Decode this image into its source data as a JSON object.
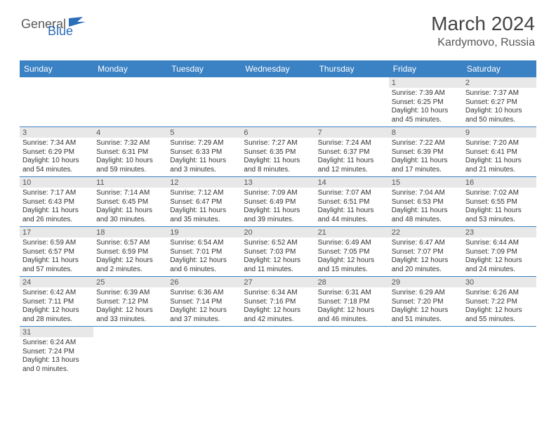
{
  "logo": {
    "part1": "General",
    "part2": "Blue"
  },
  "title": "March 2024",
  "location": "Kardymovo, Russia",
  "colors": {
    "header_bg": "#3b82c4",
    "header_text": "#ffffff",
    "daynum_bg": "#e8e8e8",
    "cell_border": "#3b82c4",
    "logo_gray": "#5a5a5a",
    "logo_blue": "#2a6db8"
  },
  "day_headers": [
    "Sunday",
    "Monday",
    "Tuesday",
    "Wednesday",
    "Thursday",
    "Friday",
    "Saturday"
  ],
  "weeks": [
    [
      null,
      null,
      null,
      null,
      null,
      {
        "n": "1",
        "sr": "Sunrise: 7:39 AM",
        "ss": "Sunset: 6:25 PM",
        "d1": "Daylight: 10 hours",
        "d2": "and 45 minutes."
      },
      {
        "n": "2",
        "sr": "Sunrise: 7:37 AM",
        "ss": "Sunset: 6:27 PM",
        "d1": "Daylight: 10 hours",
        "d2": "and 50 minutes."
      }
    ],
    [
      {
        "n": "3",
        "sr": "Sunrise: 7:34 AM",
        "ss": "Sunset: 6:29 PM",
        "d1": "Daylight: 10 hours",
        "d2": "and 54 minutes."
      },
      {
        "n": "4",
        "sr": "Sunrise: 7:32 AM",
        "ss": "Sunset: 6:31 PM",
        "d1": "Daylight: 10 hours",
        "d2": "and 59 minutes."
      },
      {
        "n": "5",
        "sr": "Sunrise: 7:29 AM",
        "ss": "Sunset: 6:33 PM",
        "d1": "Daylight: 11 hours",
        "d2": "and 3 minutes."
      },
      {
        "n": "6",
        "sr": "Sunrise: 7:27 AM",
        "ss": "Sunset: 6:35 PM",
        "d1": "Daylight: 11 hours",
        "d2": "and 8 minutes."
      },
      {
        "n": "7",
        "sr": "Sunrise: 7:24 AM",
        "ss": "Sunset: 6:37 PM",
        "d1": "Daylight: 11 hours",
        "d2": "and 12 minutes."
      },
      {
        "n": "8",
        "sr": "Sunrise: 7:22 AM",
        "ss": "Sunset: 6:39 PM",
        "d1": "Daylight: 11 hours",
        "d2": "and 17 minutes."
      },
      {
        "n": "9",
        "sr": "Sunrise: 7:20 AM",
        "ss": "Sunset: 6:41 PM",
        "d1": "Daylight: 11 hours",
        "d2": "and 21 minutes."
      }
    ],
    [
      {
        "n": "10",
        "sr": "Sunrise: 7:17 AM",
        "ss": "Sunset: 6:43 PM",
        "d1": "Daylight: 11 hours",
        "d2": "and 26 minutes."
      },
      {
        "n": "11",
        "sr": "Sunrise: 7:14 AM",
        "ss": "Sunset: 6:45 PM",
        "d1": "Daylight: 11 hours",
        "d2": "and 30 minutes."
      },
      {
        "n": "12",
        "sr": "Sunrise: 7:12 AM",
        "ss": "Sunset: 6:47 PM",
        "d1": "Daylight: 11 hours",
        "d2": "and 35 minutes."
      },
      {
        "n": "13",
        "sr": "Sunrise: 7:09 AM",
        "ss": "Sunset: 6:49 PM",
        "d1": "Daylight: 11 hours",
        "d2": "and 39 minutes."
      },
      {
        "n": "14",
        "sr": "Sunrise: 7:07 AM",
        "ss": "Sunset: 6:51 PM",
        "d1": "Daylight: 11 hours",
        "d2": "and 44 minutes."
      },
      {
        "n": "15",
        "sr": "Sunrise: 7:04 AM",
        "ss": "Sunset: 6:53 PM",
        "d1": "Daylight: 11 hours",
        "d2": "and 48 minutes."
      },
      {
        "n": "16",
        "sr": "Sunrise: 7:02 AM",
        "ss": "Sunset: 6:55 PM",
        "d1": "Daylight: 11 hours",
        "d2": "and 53 minutes."
      }
    ],
    [
      {
        "n": "17",
        "sr": "Sunrise: 6:59 AM",
        "ss": "Sunset: 6:57 PM",
        "d1": "Daylight: 11 hours",
        "d2": "and 57 minutes."
      },
      {
        "n": "18",
        "sr": "Sunrise: 6:57 AM",
        "ss": "Sunset: 6:59 PM",
        "d1": "Daylight: 12 hours",
        "d2": "and 2 minutes."
      },
      {
        "n": "19",
        "sr": "Sunrise: 6:54 AM",
        "ss": "Sunset: 7:01 PM",
        "d1": "Daylight: 12 hours",
        "d2": "and 6 minutes."
      },
      {
        "n": "20",
        "sr": "Sunrise: 6:52 AM",
        "ss": "Sunset: 7:03 PM",
        "d1": "Daylight: 12 hours",
        "d2": "and 11 minutes."
      },
      {
        "n": "21",
        "sr": "Sunrise: 6:49 AM",
        "ss": "Sunset: 7:05 PM",
        "d1": "Daylight: 12 hours",
        "d2": "and 15 minutes."
      },
      {
        "n": "22",
        "sr": "Sunrise: 6:47 AM",
        "ss": "Sunset: 7:07 PM",
        "d1": "Daylight: 12 hours",
        "d2": "and 20 minutes."
      },
      {
        "n": "23",
        "sr": "Sunrise: 6:44 AM",
        "ss": "Sunset: 7:09 PM",
        "d1": "Daylight: 12 hours",
        "d2": "and 24 minutes."
      }
    ],
    [
      {
        "n": "24",
        "sr": "Sunrise: 6:42 AM",
        "ss": "Sunset: 7:11 PM",
        "d1": "Daylight: 12 hours",
        "d2": "and 28 minutes."
      },
      {
        "n": "25",
        "sr": "Sunrise: 6:39 AM",
        "ss": "Sunset: 7:12 PM",
        "d1": "Daylight: 12 hours",
        "d2": "and 33 minutes."
      },
      {
        "n": "26",
        "sr": "Sunrise: 6:36 AM",
        "ss": "Sunset: 7:14 PM",
        "d1": "Daylight: 12 hours",
        "d2": "and 37 minutes."
      },
      {
        "n": "27",
        "sr": "Sunrise: 6:34 AM",
        "ss": "Sunset: 7:16 PM",
        "d1": "Daylight: 12 hours",
        "d2": "and 42 minutes."
      },
      {
        "n": "28",
        "sr": "Sunrise: 6:31 AM",
        "ss": "Sunset: 7:18 PM",
        "d1": "Daylight: 12 hours",
        "d2": "and 46 minutes."
      },
      {
        "n": "29",
        "sr": "Sunrise: 6:29 AM",
        "ss": "Sunset: 7:20 PM",
        "d1": "Daylight: 12 hours",
        "d2": "and 51 minutes."
      },
      {
        "n": "30",
        "sr": "Sunrise: 6:26 AM",
        "ss": "Sunset: 7:22 PM",
        "d1": "Daylight: 12 hours",
        "d2": "and 55 minutes."
      }
    ],
    [
      {
        "n": "31",
        "sr": "Sunrise: 6:24 AM",
        "ss": "Sunset: 7:24 PM",
        "d1": "Daylight: 13 hours",
        "d2": "and 0 minutes."
      },
      null,
      null,
      null,
      null,
      null,
      null
    ]
  ]
}
